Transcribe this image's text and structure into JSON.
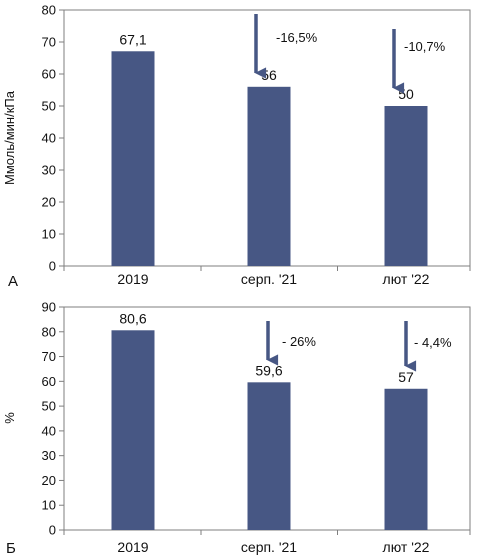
{
  "colors": {
    "bar": "#475784",
    "arrow": "#475784",
    "frame": "#7f7f7f",
    "grid": "#9e9e9e"
  },
  "chart_data": [
    {
      "type": "bar",
      "panel_label": "А",
      "ylabel": "Ммоль/мин/кПа",
      "ylim": [
        0,
        80
      ],
      "yticks": [
        0,
        10,
        20,
        30,
        40,
        50,
        60,
        70,
        80
      ],
      "grid": false,
      "categories": [
        "2019",
        "серп. '21",
        "лют '22"
      ],
      "values": [
        67.1,
        56,
        50
      ],
      "data_labels": [
        "67,1",
        "56",
        "50"
      ],
      "annotations": [
        {
          "category_index": 1,
          "text": "-16,5%"
        },
        {
          "category_index": 2,
          "text": "-10,7%"
        }
      ]
    },
    {
      "type": "bar",
      "panel_label": "Б",
      "ylabel": "%",
      "ylim": [
        0,
        90
      ],
      "yticks": [
        0,
        10,
        20,
        30,
        40,
        50,
        60,
        70,
        80,
        90
      ],
      "grid": false,
      "categories": [
        "2019",
        "серп. '21",
        "лют '22"
      ],
      "values": [
        80.6,
        59.6,
        57
      ],
      "data_labels": [
        "80,6",
        "59,6",
        "57"
      ],
      "annotations": [
        {
          "category_index": 1,
          "text": "- 26%"
        },
        {
          "category_index": 2,
          "text": "- 4,4%"
        }
      ]
    }
  ]
}
